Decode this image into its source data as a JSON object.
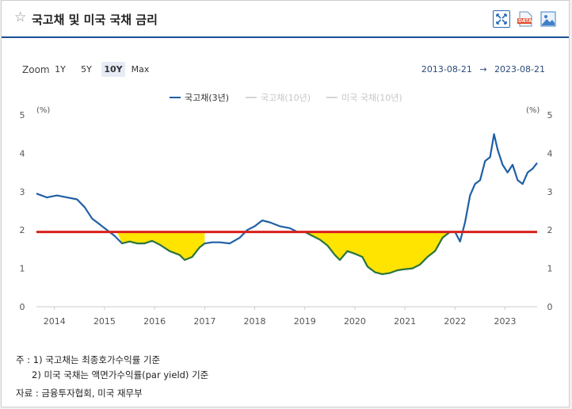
{
  "header": {
    "title": "국고채 및 미국 국채 금리",
    "fullscreen_icon": "fullscreen-icon",
    "data_download_label": "DATA",
    "image_download_icon": "image-icon"
  },
  "zoom": {
    "label": "Zoom",
    "options": [
      "1Y",
      "5Y",
      "10Y",
      "Max"
    ],
    "active": "10Y"
  },
  "range": {
    "from": "2013-08-21",
    "arrow": "→",
    "to": "2023-08-21"
  },
  "colors": {
    "series_main": "#1f5fa5",
    "series_inactive": "#cccccc",
    "reference_line": "#d9201c",
    "highlight_fill": "#ffe400",
    "highlight_line": "#2f7a1f"
  },
  "chart_data": {
    "type": "line",
    "unit_left": "(%)",
    "unit_right": "(%)",
    "ylim": [
      0,
      5
    ],
    "yticks": [
      0,
      1,
      2,
      3,
      4,
      5
    ],
    "xlim": [
      2013.64,
      2023.64
    ],
    "xticks": [
      "2014",
      "2015",
      "2016",
      "2017",
      "2018",
      "2019",
      "2020",
      "2021",
      "2022",
      "2023"
    ],
    "grid": false,
    "legend_position": "top-center",
    "reference_line": 1.95,
    "series": [
      {
        "name": "국고채(3년)",
        "visible": true,
        "x": [
          2013.64,
          2013.85,
          2014.05,
          2014.25,
          2014.45,
          2014.6,
          2014.75,
          2014.9,
          2015.05,
          2015.2,
          2015.35,
          2015.5,
          2015.65,
          2015.8,
          2015.95,
          2016.1,
          2016.3,
          2016.5,
          2016.6,
          2016.75,
          2016.9,
          2017.0,
          2017.15,
          2017.3,
          2017.5,
          2017.7,
          2017.85,
          2018.0,
          2018.15,
          2018.3,
          2018.5,
          2018.7,
          2018.85,
          2019.0,
          2019.15,
          2019.3,
          2019.45,
          2019.6,
          2019.7,
          2019.85,
          2020.0,
          2020.15,
          2020.25,
          2020.4,
          2020.55,
          2020.7,
          2020.85,
          2021.0,
          2021.15,
          2021.3,
          2021.45,
          2021.6,
          2021.75,
          2021.9,
          2022.0,
          2022.1,
          2022.2,
          2022.3,
          2022.4,
          2022.5,
          2022.6,
          2022.7,
          2022.78,
          2022.85,
          2022.95,
          2023.05,
          2023.15,
          2023.25,
          2023.35,
          2023.45,
          2023.55,
          2023.64
        ],
        "y": [
          2.95,
          2.85,
          2.9,
          2.85,
          2.8,
          2.6,
          2.3,
          2.15,
          2.0,
          1.85,
          1.65,
          1.7,
          1.65,
          1.65,
          1.72,
          1.62,
          1.45,
          1.35,
          1.22,
          1.3,
          1.55,
          1.65,
          1.68,
          1.68,
          1.65,
          1.8,
          2.0,
          2.1,
          2.25,
          2.2,
          2.1,
          2.05,
          1.95,
          1.95,
          1.85,
          1.75,
          1.6,
          1.35,
          1.22,
          1.45,
          1.38,
          1.3,
          1.05,
          0.9,
          0.85,
          0.88,
          0.95,
          0.98,
          1.0,
          1.1,
          1.3,
          1.45,
          1.8,
          1.95,
          1.95,
          1.7,
          2.2,
          2.9,
          3.2,
          3.3,
          3.8,
          3.9,
          4.5,
          4.1,
          3.7,
          3.5,
          3.7,
          3.3,
          3.2,
          3.5,
          3.6,
          3.75
        ]
      },
      {
        "name": "국고채(10년)",
        "visible": false
      },
      {
        "name": "미국 국채(10년)",
        "visible": false
      }
    ]
  },
  "notes": {
    "line1": "주 : 1) 국고채는 최종호가수익률 기준",
    "line2": "2) 미국 국채는 액면가수익률(par yield) 기준",
    "source": "자료 : 금융투자협회, 미국 재무부"
  }
}
